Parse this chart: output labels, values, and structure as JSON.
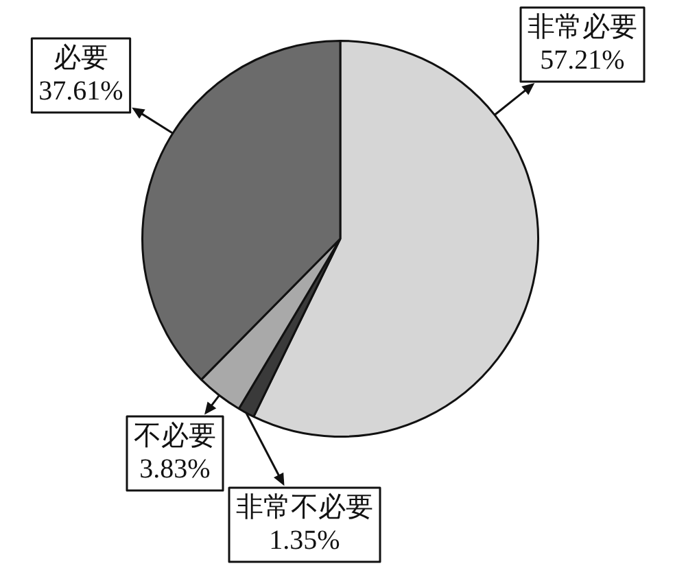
{
  "chart_data": {
    "type": "pie",
    "categories": [
      "非常必要",
      "非常不必要",
      "不必要",
      "必要"
    ],
    "values": [
      57.21,
      1.35,
      3.83,
      37.61
    ],
    "value_labels": [
      "57.21%",
      "1.35%",
      "3.83%",
      "37.61%"
    ],
    "colors": [
      "#d6d6d6",
      "#3a3a3a",
      "#a9a9a9",
      "#6b6b6b"
    ]
  }
}
